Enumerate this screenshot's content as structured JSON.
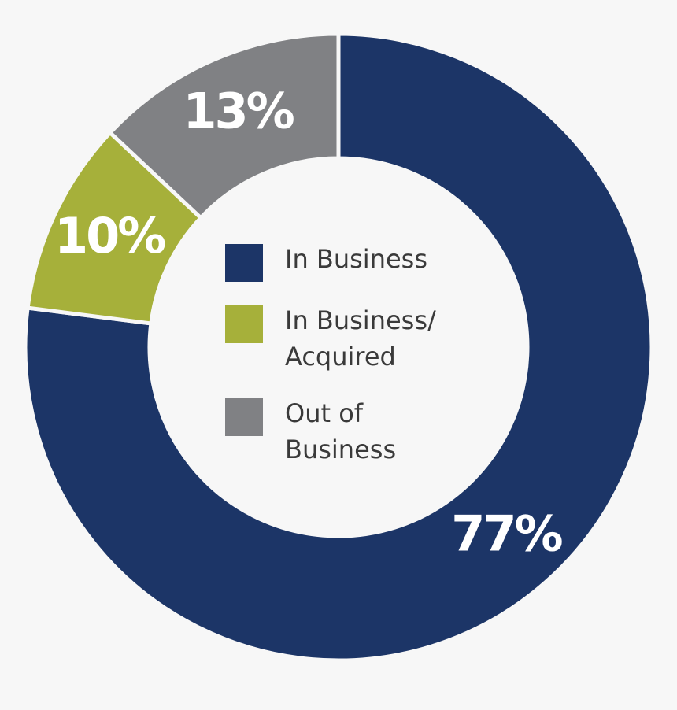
{
  "chart_data": {
    "type": "donut",
    "categories": [
      "In Business",
      "In Business/ Acquired",
      "Out of Business"
    ],
    "values": [
      77,
      10,
      13
    ],
    "value_labels": [
      "77%",
      "10%",
      "13%"
    ],
    "colors": [
      "#1c3567",
      "#a6b03a",
      "#808184"
    ]
  }
}
